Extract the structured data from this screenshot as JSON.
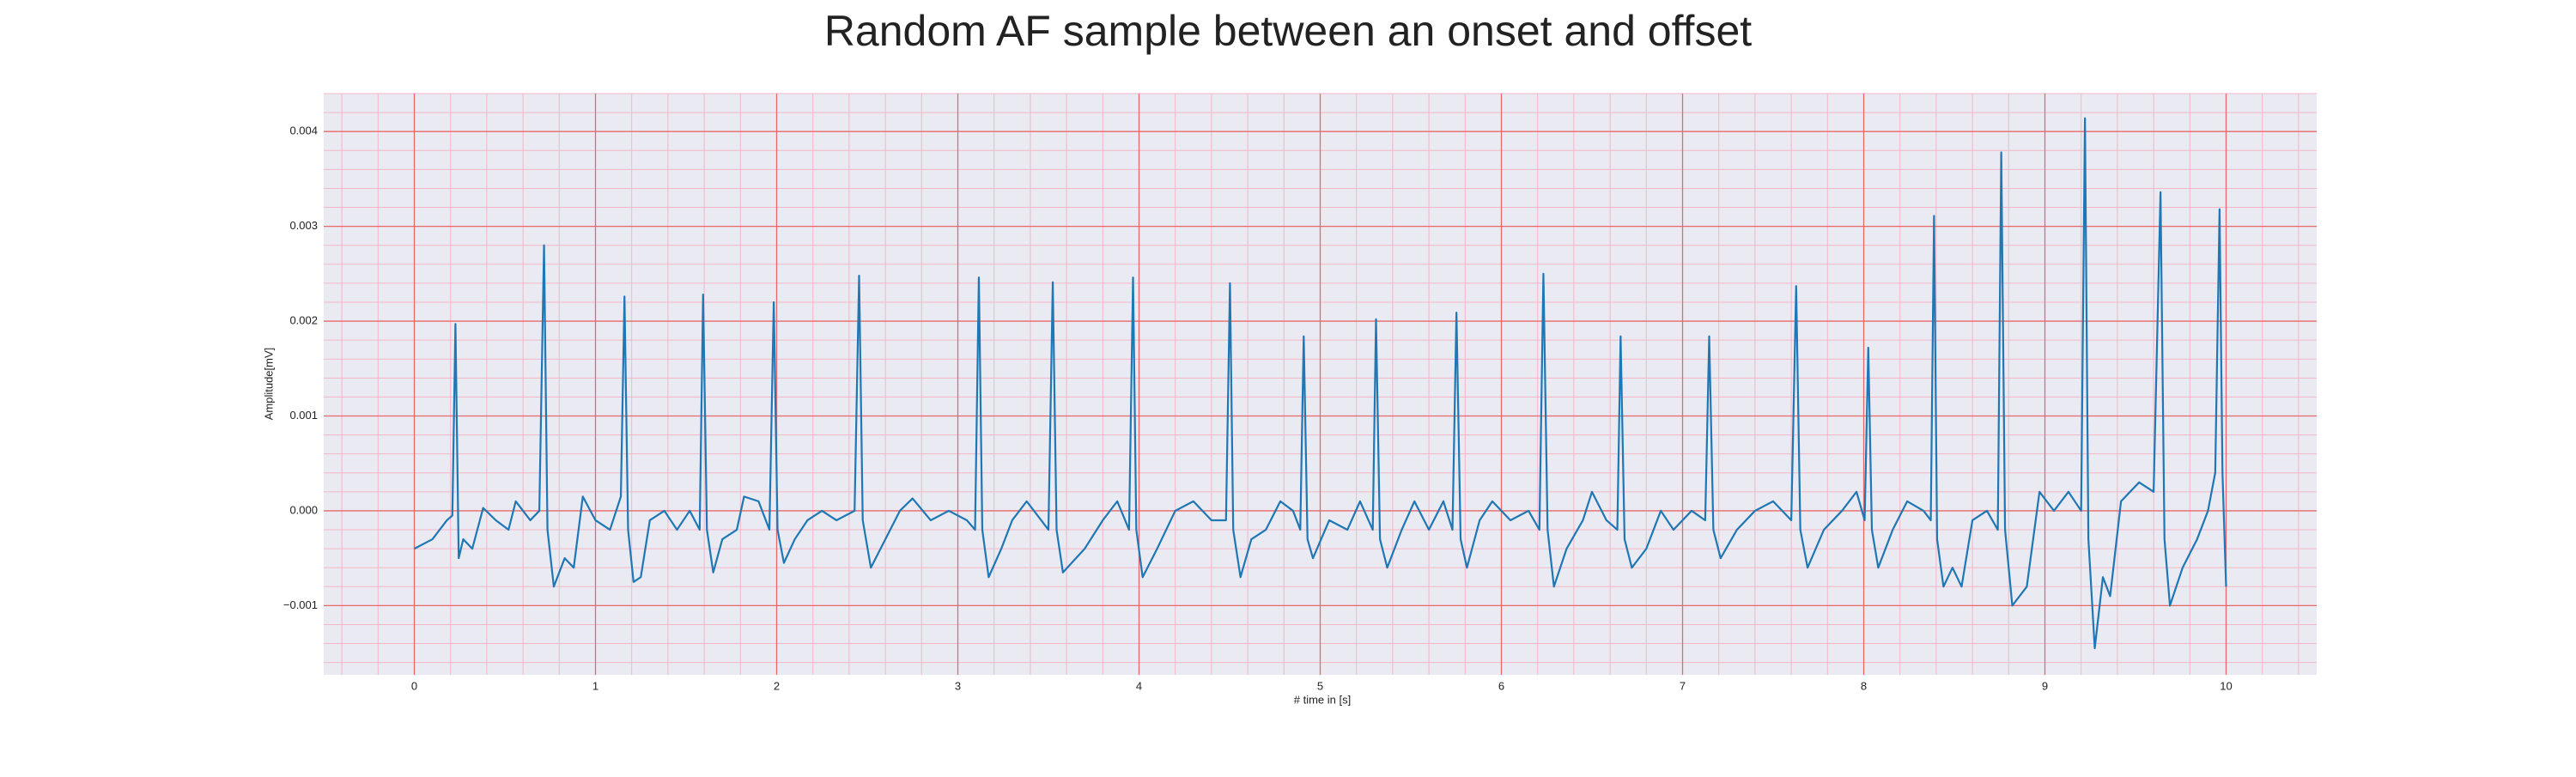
{
  "chart_data": {
    "type": "line",
    "title": "Random AF sample between an onset and offset",
    "xlabel": "# time in [s]",
    "ylabel": "Amplitude[mV]",
    "color": "#1f77b4",
    "grid": true,
    "minor_grid": true,
    "xlim": [
      -0.5,
      10.5
    ],
    "ylim": [
      -0.00173,
      0.0044
    ],
    "xticks": [
      0,
      1,
      2,
      3,
      4,
      5,
      6,
      7,
      8,
      9,
      10
    ],
    "yticks": [
      {
        "value": -0.001,
        "label": "−0.001"
      },
      {
        "value": 0,
        "label": "0.000"
      },
      0.001,
      0.002,
      0.003,
      0.004
    ],
    "x": [
      0,
      0.1,
      0.18,
      0.21,
      0.227,
      0.245,
      0.27,
      0.32,
      0.38,
      0.45,
      0.52,
      0.56,
      0.64,
      0.69,
      0.716,
      0.735,
      0.77,
      0.83,
      0.88,
      0.93,
      1.0,
      1.08,
      1.14,
      1.16,
      1.18,
      1.21,
      1.25,
      1.3,
      1.38,
      1.45,
      1.52,
      1.575,
      1.594,
      1.615,
      1.65,
      1.7,
      1.78,
      1.82,
      1.9,
      1.96,
      1.984,
      2.005,
      2.04,
      2.1,
      2.17,
      2.25,
      2.33,
      2.43,
      2.455,
      2.475,
      2.52,
      2.6,
      2.68,
      2.75,
      2.85,
      2.95,
      3.05,
      3.095,
      3.116,
      3.135,
      3.17,
      3.24,
      3.3,
      3.38,
      3.46,
      3.5,
      3.524,
      3.545,
      3.58,
      3.7,
      3.8,
      3.88,
      3.945,
      3.967,
      3.985,
      4.02,
      4.1,
      4.2,
      4.3,
      4.4,
      4.48,
      4.502,
      4.52,
      4.56,
      4.62,
      4.7,
      4.78,
      4.85,
      4.89,
      4.909,
      4.93,
      4.96,
      5.05,
      5.15,
      5.22,
      5.29,
      5.308,
      5.33,
      5.37,
      5.45,
      5.52,
      5.6,
      5.68,
      5.73,
      5.752,
      5.775,
      5.81,
      5.88,
      5.95,
      6.05,
      6.15,
      6.21,
      6.232,
      6.255,
      6.29,
      6.36,
      6.45,
      6.5,
      6.58,
      6.64,
      6.658,
      6.68,
      6.72,
      6.8,
      6.88,
      6.95,
      7.05,
      7.125,
      7.147,
      7.17,
      7.21,
      7.3,
      7.4,
      7.5,
      7.6,
      7.627,
      7.65,
      7.69,
      7.78,
      7.88,
      7.96,
      8.005,
      8.025,
      8.045,
      8.08,
      8.16,
      8.24,
      8.33,
      8.37,
      8.388,
      8.405,
      8.44,
      8.49,
      8.54,
      8.6,
      8.68,
      8.74,
      8.759,
      8.78,
      8.82,
      8.9,
      8.97,
      9.05,
      9.13,
      9.2,
      9.221,
      9.24,
      9.275,
      9.32,
      9.36,
      9.42,
      9.52,
      9.6,
      9.638,
      9.66,
      9.69,
      9.76,
      9.84,
      9.9,
      9.94,
      9.964,
      9.98,
      10.0
    ],
    "values": [
      -0.0004,
      -0.0003,
      -0.0001,
      -5e-05,
      0.00197,
      -0.0005,
      -0.0003,
      -0.0004,
      3e-05,
      -0.0001,
      -0.0002,
      0.0001,
      -0.0001,
      0,
      0.0028,
      -0.0002,
      -0.0008,
      -0.0005,
      -0.0006,
      0.00015,
      -0.0001,
      -0.0002,
      0.00015,
      0.00226,
      -0.0002,
      -0.00075,
      -0.0007,
      -0.0001,
      0,
      -0.0002,
      0,
      -0.0002,
      0.00228,
      -0.0002,
      -0.00065,
      -0.0003,
      -0.0002,
      0.00015,
      0.0001,
      -0.0002,
      0.0022,
      -0.0002,
      -0.00055,
      -0.0003,
      -0.0001,
      0,
      -0.0001,
      0,
      0.00248,
      -0.0001,
      -0.0006,
      -0.0003,
      0,
      0.00013,
      -0.0001,
      0,
      -0.0001,
      -0.0002,
      0.00246,
      -0.0002,
      -0.0007,
      -0.0004,
      -0.0001,
      0.0001,
      -0.0001,
      -0.0002,
      0.00241,
      -0.0002,
      -0.00065,
      -0.0004,
      -0.0001,
      0.0001,
      -0.0002,
      0.00246,
      -0.0002,
      -0.0007,
      -0.0004,
      0,
      0.0001,
      -0.0001,
      -0.0001,
      0.0024,
      -0.0002,
      -0.0007,
      -0.0003,
      -0.0002,
      0.0001,
      0,
      -0.0002,
      0.00184,
      -0.0003,
      -0.0005,
      -0.0001,
      -0.0002,
      0.0001,
      -0.0002,
      0.00202,
      -0.0003,
      -0.0006,
      -0.0002,
      0.0001,
      -0.0002,
      0.0001,
      -0.0002,
      0.00209,
      -0.0003,
      -0.0006,
      -0.0001,
      0.0001,
      -0.0001,
      0,
      -0.0002,
      0.0025,
      -0.0002,
      -0.0008,
      -0.0004,
      -0.0001,
      0.0002,
      -0.0001,
      -0.0002,
      0.00184,
      -0.0003,
      -0.0006,
      -0.0004,
      0,
      -0.0002,
      0,
      -0.0001,
      0.00184,
      -0.0002,
      -0.0005,
      -0.0002,
      0,
      0.0001,
      -0.0001,
      0.00237,
      -0.0002,
      -0.0006,
      -0.0002,
      0,
      0.0002,
      -0.0001,
      0.00172,
      -0.0002,
      -0.0006,
      -0.0002,
      0.0001,
      0,
      -0.0001,
      0.00311,
      -0.0003,
      -0.0008,
      -0.0006,
      -0.0008,
      -0.0001,
      0,
      -0.0002,
      0.00378,
      -0.0002,
      -0.001,
      -0.0008,
      0.0002,
      0,
      0.0002,
      0,
      0.00414,
      -0.0003,
      -0.00145,
      -0.0007,
      -0.0009,
      0.0001,
      0.0003,
      0.0002,
      0.00336,
      -0.0003,
      -0.001,
      -0.0006,
      -0.0003,
      0,
      0.0004,
      0.00318,
      0.0004,
      -0.0008
    ]
  }
}
